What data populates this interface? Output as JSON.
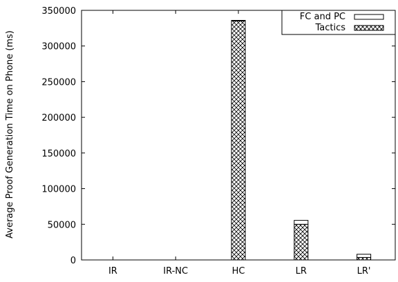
{
  "chart_data": {
    "type": "bar",
    "stacked": true,
    "categories": [
      "IR",
      "IR-NC",
      "HC",
      "LR",
      "LR'"
    ],
    "series": [
      {
        "name": "Tactics",
        "pattern": "crosshatch",
        "values": [
          0,
          0,
          335000,
          50000,
          3500
        ]
      },
      {
        "name": "FC and PC",
        "pattern": "none",
        "values": [
          0,
          0,
          500,
          5500,
          4500
        ]
      }
    ],
    "xlabel": "",
    "ylabel": "Average Proof Generation Time on Phone (ms)",
    "ylim": [
      0,
      350000
    ],
    "yticks": [
      "0",
      "50000",
      "100000",
      "150000",
      "200000",
      "250000",
      "300000",
      "350000"
    ],
    "grid": false,
    "legend_position": "top-right",
    "colors": {
      "axis": "#000000",
      "bar_fill": "#ffffff",
      "hatch": "#000000"
    }
  }
}
